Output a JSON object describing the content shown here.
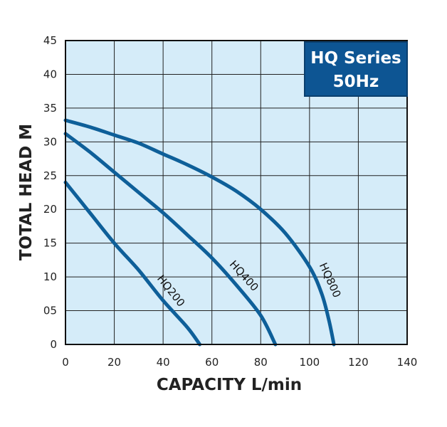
{
  "chart_data": {
    "type": "line",
    "title_lines": [
      "HQ Series",
      "50Hz"
    ],
    "xlabel": "CAPACITY L/min",
    "ylabel": "TOTAL HEAD M",
    "xlim": [
      0,
      140
    ],
    "ylim": [
      0,
      45
    ],
    "x_ticks": [
      "0",
      "20",
      "40",
      "60",
      "80",
      "100",
      "120",
      "140"
    ],
    "y_ticks": [
      "0",
      "5",
      "10",
      "15",
      "20",
      "25",
      "30",
      "35",
      "40",
      "45"
    ],
    "y_tick_labels": [
      "0",
      "05",
      "10",
      "15",
      "20",
      "25",
      "30",
      "35",
      "40",
      "45"
    ],
    "grid": true,
    "series": [
      {
        "name": "HQ200",
        "x": [
          0,
          10,
          20,
          30,
          40,
          50,
          55
        ],
        "y": [
          24,
          19.5,
          15,
          11,
          6.5,
          2.5,
          0
        ]
      },
      {
        "name": "HQ400",
        "x": [
          0,
          10,
          20,
          30,
          40,
          50,
          60,
          70,
          80,
          86
        ],
        "y": [
          31.2,
          28.5,
          25.5,
          22.5,
          19.5,
          16.2,
          12.8,
          8.8,
          4.3,
          0
        ]
      },
      {
        "name": "HQ800",
        "x": [
          0,
          10,
          20,
          30,
          40,
          50,
          60,
          70,
          80,
          90,
          100,
          105,
          108,
          110
        ],
        "y": [
          33.2,
          32.2,
          31,
          29.8,
          28.2,
          26.6,
          24.8,
          22.7,
          20,
          16.5,
          11.5,
          7.5,
          3.5,
          0
        ]
      }
    ],
    "colors": {
      "plot_background": "#d5ecf9",
      "line": "#0e5f99",
      "badge_fill": "#0d5593",
      "grid": "#222222"
    }
  }
}
